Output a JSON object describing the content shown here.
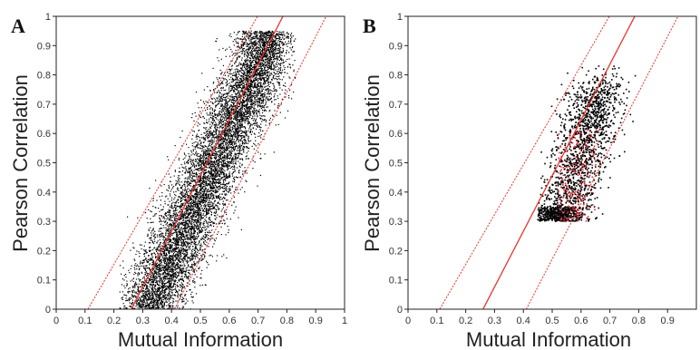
{
  "chart_data": [
    {
      "type": "scatter",
      "panel_label": "A",
      "xlabel": "Mutual Information",
      "ylabel": "Pearson Correlation",
      "xlim": [
        0,
        1
      ],
      "ylim": [
        0,
        1
      ],
      "x_ticks": [
        "0",
        "0.1",
        "0.2",
        "0.3",
        "0.4",
        "0.5",
        "0.6",
        "0.7",
        "0.8",
        "0.9",
        "1"
      ],
      "y_ticks": [
        "0",
        "0.1",
        "0.2",
        "0.3",
        "0.4",
        "0.5",
        "0.6",
        "0.7",
        "0.8",
        "0.9",
        "1"
      ],
      "grid": false,
      "point_color": "#000000",
      "line_color": "#e8342b",
      "reference_lines": [
        {
          "x_at_y0": 0.11,
          "slope": 1.7
        },
        {
          "x_at_y0": 0.26,
          "slope": 1.9
        },
        {
          "x_at_y0": 0.41,
          "slope": 1.9
        }
      ],
      "point_cloud": {
        "approx_points": 9000,
        "shape": "dense elongated band",
        "x_range": [
          0.27,
          0.78
        ],
        "y_range": [
          0.0,
          0.95
        ]
      }
    },
    {
      "type": "scatter",
      "panel_label": "B",
      "xlabel": "Mutual Information",
      "ylabel": "Pearson Correlation",
      "xlim": [
        0,
        1
      ],
      "ylim": [
        0,
        1
      ],
      "x_ticks": [
        "0",
        "0.1",
        "0.2",
        "0.3",
        "0.4",
        "0.5",
        "0.6",
        "0.7",
        "0.8",
        "0.9"
      ],
      "y_ticks": [
        "0",
        "0.1",
        "0.2",
        "0.3",
        "0.4",
        "0.5",
        "0.6",
        "0.7",
        "0.8",
        "0.9",
        "1"
      ],
      "grid": false,
      "point_colors": [
        "#000000",
        "#d9303a"
      ],
      "line_color": "#e8342b",
      "reference_lines": [
        {
          "x_at_y0": 0.11,
          "slope": 1.7
        },
        {
          "x_at_y0": 0.26,
          "slope": 1.9
        },
        {
          "x_at_y0": 0.41,
          "slope": 1.9
        }
      ],
      "point_cloud": {
        "approx_points": 2200,
        "shape": "compact cluster",
        "x_range": [
          0.5,
          0.85
        ],
        "y_range": [
          0.22,
          0.97
        ],
        "highlight_subset": {
          "color": "#d9303a",
          "x_range": [
            0.52,
            0.66
          ],
          "y_range": [
            0.3,
            0.62
          ]
        }
      }
    }
  ]
}
